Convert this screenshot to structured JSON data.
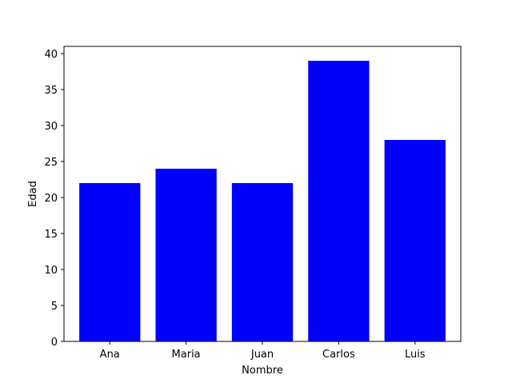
{
  "chart_data": {
    "type": "bar",
    "title": "",
    "xlabel": "Nombre",
    "ylabel": "Edad",
    "categories": [
      "Ana",
      "Maria",
      "Juan",
      "Carlos",
      "Luis"
    ],
    "values": [
      22,
      24,
      22,
      39,
      28
    ],
    "ylim": [
      0,
      41
    ],
    "yticks": [
      0,
      5,
      10,
      15,
      20,
      25,
      30,
      35,
      40
    ],
    "bar_color": "#0000ff",
    "grid": false,
    "legend": false
  }
}
